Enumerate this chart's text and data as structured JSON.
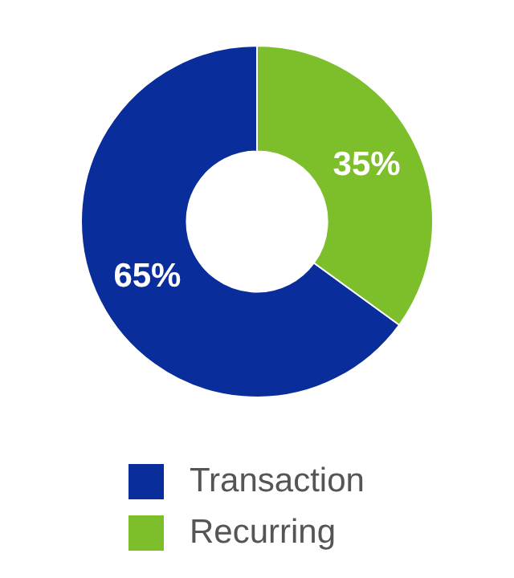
{
  "chart_data": {
    "type": "donut",
    "categories": [
      "Transaction",
      "Recurring"
    ],
    "values": [
      65,
      35
    ],
    "colors": [
      "#0a2d9c",
      "#7cbf2b"
    ],
    "value_labels": [
      "65%",
      "35%"
    ],
    "legend": "bottom"
  }
}
